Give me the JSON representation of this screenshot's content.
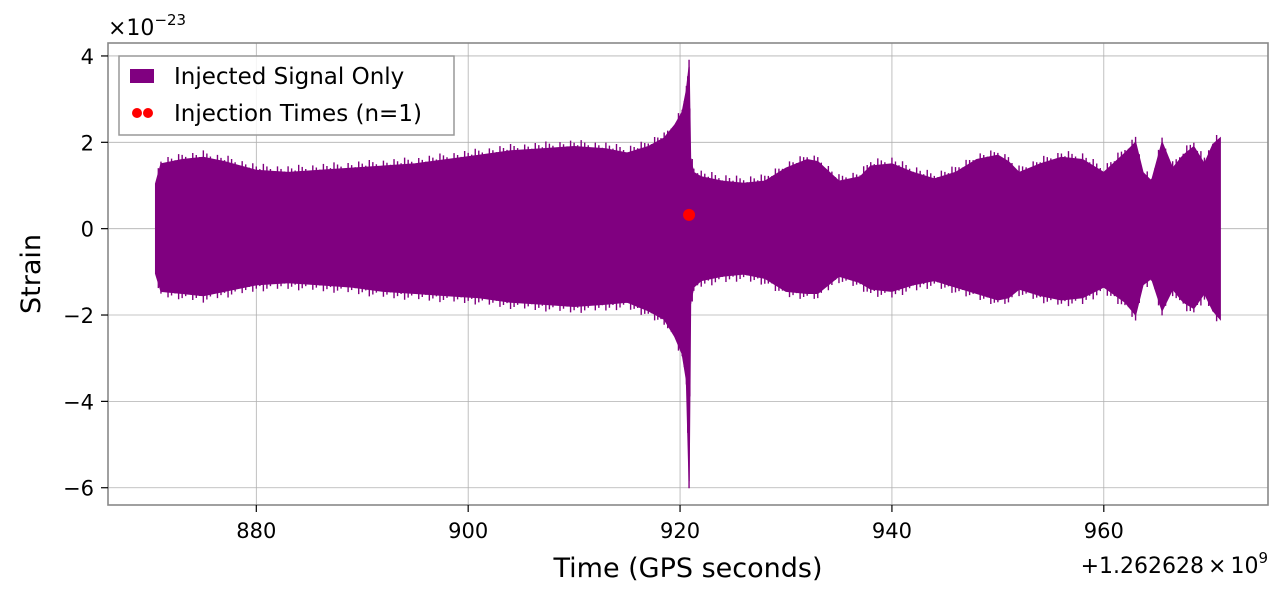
{
  "chart_data": {
    "type": "area",
    "xlabel": "Time (GPS seconds)",
    "ylabel": "Strain",
    "x_offset_label": "+1.262628",
    "x_offset_times": "×",
    "x_offset_power_base": "10",
    "x_offset_power_exp": "9",
    "y_multiplier_label": "×10",
    "y_multiplier_exp": "−23",
    "x_ticks": [
      880,
      900,
      920,
      940,
      960
    ],
    "x_tick_labels": [
      "880",
      "900",
      "920",
      "940",
      "960"
    ],
    "y_ticks": [
      4,
      2,
      0,
      -2,
      -4,
      -6
    ],
    "y_tick_labels": [
      "4",
      "2",
      "0",
      "−2",
      "−4",
      "−6"
    ],
    "xlim": [
      866,
      975.5
    ],
    "ylim": [
      -6.4,
      4.3
    ],
    "grid": true,
    "legend_position": "top-left",
    "series": [
      {
        "name": "Injected Signal Only",
        "color": "#800080",
        "envelope": {
          "x": [
            870.5,
            871,
            873,
            875,
            877,
            880,
            883,
            886,
            889,
            892,
            895,
            898,
            901,
            904,
            907,
            910,
            913,
            915,
            917,
            918.5,
            919.5,
            920.2,
            920.6,
            920.85,
            921.0,
            921.3,
            922,
            924,
            926,
            928,
            930,
            932,
            933,
            935,
            937,
            938,
            940,
            942,
            944,
            946,
            948,
            950,
            951,
            952,
            954,
            956,
            958,
            960,
            962,
            963,
            963.7,
            964.5,
            965.5,
            966.5,
            967.5,
            968.5,
            969.5,
            970.3,
            971
          ],
          "upper": [
            1.05,
            1.5,
            1.6,
            1.65,
            1.55,
            1.35,
            1.3,
            1.35,
            1.4,
            1.45,
            1.5,
            1.6,
            1.7,
            1.8,
            1.85,
            1.9,
            1.85,
            1.75,
            1.9,
            2.1,
            2.4,
            2.7,
            3.2,
            3.75,
            1.6,
            1.3,
            1.2,
            1.1,
            1.05,
            1.1,
            1.4,
            1.6,
            1.55,
            1.1,
            1.2,
            1.45,
            1.5,
            1.3,
            1.15,
            1.3,
            1.6,
            1.7,
            1.55,
            1.3,
            1.5,
            1.65,
            1.6,
            1.3,
            1.75,
            2.0,
            1.3,
            1.1,
            2.0,
            1.4,
            1.7,
            1.9,
            1.5,
            1.95,
            2.1
          ],
          "lower": [
            -1.05,
            -1.45,
            -1.5,
            -1.55,
            -1.45,
            -1.3,
            -1.25,
            -1.3,
            -1.35,
            -1.45,
            -1.5,
            -1.55,
            -1.6,
            -1.7,
            -1.75,
            -1.8,
            -1.75,
            -1.7,
            -1.9,
            -2.1,
            -2.5,
            -2.9,
            -3.5,
            -5.85,
            -1.7,
            -1.35,
            -1.2,
            -1.1,
            -1.05,
            -1.15,
            -1.45,
            -1.5,
            -1.5,
            -1.1,
            -1.25,
            -1.4,
            -1.45,
            -1.3,
            -1.2,
            -1.35,
            -1.5,
            -1.65,
            -1.6,
            -1.4,
            -1.55,
            -1.65,
            -1.6,
            -1.35,
            -1.7,
            -2.0,
            -1.3,
            -1.15,
            -1.9,
            -1.4,
            -1.7,
            -1.85,
            -1.5,
            -1.9,
            -2.1
          ]
        }
      },
      {
        "name": "Injection Times (n=1)",
        "color": "#ff0000",
        "type": "scatter",
        "points": [
          {
            "x": 920.85,
            "y": 0.32
          }
        ]
      }
    ]
  }
}
